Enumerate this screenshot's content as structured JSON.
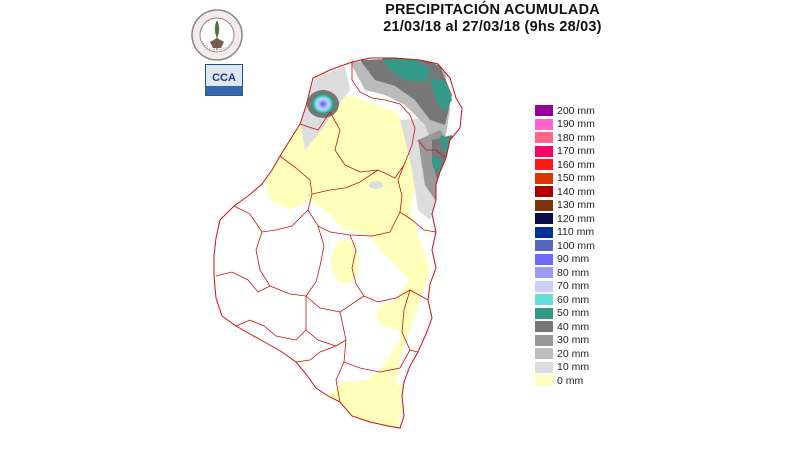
{
  "title": {
    "line1": "PRECIPITACIÓN ACUMULADA",
    "line2": "21/03/18 al  27/03/18 (9hs 28/03)"
  },
  "logos": {
    "seal_text": "BOLSA DE CEREALES DE ENTRE RIOS",
    "cca_text": "CCA"
  },
  "legend": [
    {
      "label": "200 mm",
      "color": "#990099"
    },
    {
      "label": "190 mm",
      "color": "#ff66cc"
    },
    {
      "label": "180 mm",
      "color": "#ff6688"
    },
    {
      "label": "170 mm",
      "color": "#ff0066"
    },
    {
      "label": "160 mm",
      "color": "#ff1a1a"
    },
    {
      "label": "150 mm",
      "color": "#dd3300"
    },
    {
      "label": "140 mm",
      "color": "#aa0000"
    },
    {
      "label": "130 mm",
      "color": "#7a3310"
    },
    {
      "label": "120 mm",
      "color": "#0a0a4a"
    },
    {
      "label": "110 mm",
      "color": "#003399"
    },
    {
      "label": "100 mm",
      "color": "#5566bb"
    },
    {
      "label": "90 mm",
      "color": "#6a6aff"
    },
    {
      "label": "80 mm",
      "color": "#9999ff"
    },
    {
      "label": "70 mm",
      "color": "#ccccff"
    },
    {
      "label": "60 mm",
      "color": "#66dddd"
    },
    {
      "label": "50 mm",
      "color": "#339988"
    },
    {
      "label": "40 mm",
      "color": "#777777"
    },
    {
      "label": "30 mm",
      "color": "#999999"
    },
    {
      "label": "20 mm",
      "color": "#bbbbbb"
    },
    {
      "label": "10 mm",
      "color": "#dddddd"
    },
    {
      "label": "0 mm",
      "color": "#ffffbb"
    }
  ],
  "colors": {
    "border": "#cc1111",
    "province_fill": "#ffffff",
    "dry": "#ffffbb"
  }
}
